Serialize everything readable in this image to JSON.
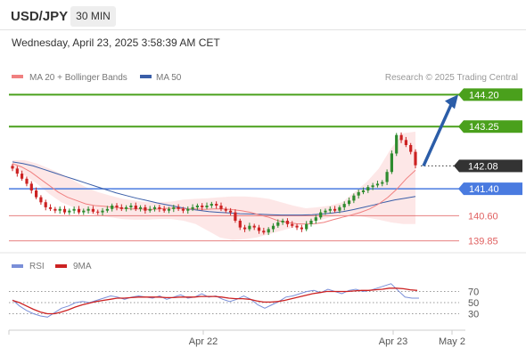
{
  "header": {
    "symbol": "USD/JPY",
    "timeframe": "30 MIN",
    "datetime": "Wednesday, April 23, 2025 3:58:39 AM CET"
  },
  "legend": {
    "ma20_label": "MA 20 + Bollinger Bands",
    "ma50_label": "MA 50",
    "credit": "Research © 2025 Trading Central"
  },
  "colors": {
    "ma20": "#f08080",
    "ma50": "#3a5ea8",
    "resistance": "#4aa01c",
    "support": "#4a7be0",
    "weak_support": "#e06060",
    "bull": "#2e8b2e",
    "bear": "#cc2222",
    "rsi": "#7a8fd8",
    "rsi_ma": "#cc2222",
    "forecast": "#2b5da8"
  },
  "chart_data": [
    {
      "type": "candlestick",
      "ylim": [
        139.55,
        144.5
      ],
      "levels": [
        {
          "value": 144.2,
          "label": "144.20",
          "kind": "resistance"
        },
        {
          "value": 143.25,
          "label": "143.25",
          "kind": "resistance"
        },
        {
          "value": 142.08,
          "label": "142.08",
          "kind": "last"
        },
        {
          "value": 141.4,
          "label": "141.40",
          "kind": "support"
        },
        {
          "value": 140.6,
          "label": "140.60",
          "kind": "weak_support"
        },
        {
          "value": 139.85,
          "label": "139.85",
          "kind": "weak_support"
        }
      ],
      "x_labels": [
        "Apr 22",
        "Apr 23",
        "May 2"
      ],
      "forecast": {
        "from": 142.08,
        "to": 144.2
      },
      "candles_close": [
        142.0,
        141.85,
        141.7,
        141.55,
        141.35,
        141.15,
        141.0,
        140.85,
        140.8,
        140.75,
        140.8,
        140.7,
        140.75,
        140.8,
        140.7,
        140.75,
        140.8,
        140.72,
        140.7,
        140.75,
        140.8,
        140.9,
        140.85,
        140.8,
        140.85,
        140.9,
        140.8,
        140.85,
        140.75,
        140.8,
        140.85,
        140.8,
        140.75,
        140.8,
        140.85,
        140.8,
        140.75,
        140.8,
        140.85,
        140.9,
        140.85,
        140.9,
        140.95,
        140.9,
        140.8,
        140.75,
        140.7,
        140.45,
        140.25,
        140.2,
        140.3,
        140.25,
        140.15,
        140.1,
        140.2,
        140.3,
        140.4,
        140.45,
        140.35,
        140.3,
        140.25,
        140.2,
        140.35,
        140.45,
        140.55,
        140.7,
        140.75,
        140.8,
        140.75,
        140.85,
        140.95,
        141.05,
        141.2,
        141.3,
        141.35,
        141.45,
        141.5,
        141.55,
        141.6,
        141.9,
        142.45,
        143.0,
        142.85,
        142.7,
        142.5,
        142.1
      ],
      "ma20": [
        142.15,
        142.05,
        141.9,
        141.7,
        141.5,
        141.3,
        141.15,
        141.05,
        140.95,
        140.9,
        140.88,
        140.85,
        140.82,
        140.8,
        140.8,
        140.78,
        140.8,
        140.82,
        140.82,
        140.8,
        140.8,
        140.79,
        140.8,
        140.8,
        140.78,
        140.75,
        140.7,
        140.62,
        140.55,
        140.45,
        140.4,
        140.36,
        140.35,
        140.36,
        140.4,
        140.48,
        140.55,
        140.62,
        140.7,
        140.8,
        140.95,
        141.15,
        141.4,
        141.7,
        141.95
      ],
      "ma50": [
        142.2,
        142.15,
        142.08,
        141.98,
        141.88,
        141.78,
        141.68,
        141.58,
        141.48,
        141.38,
        141.28,
        141.2,
        141.12,
        141.05,
        140.98,
        140.92,
        140.86,
        140.8,
        140.76,
        140.72,
        140.7,
        140.68,
        140.66,
        140.65,
        140.64,
        140.63,
        140.62,
        140.62,
        140.62,
        140.63,
        140.65,
        140.68,
        140.72,
        140.78,
        140.85,
        140.92,
        141.0,
        141.07,
        141.12,
        141.17
      ],
      "bollinger_upper": [
        142.25,
        142.25,
        142.15,
        142.0,
        141.85,
        141.65,
        141.45,
        141.3,
        141.2,
        141.1,
        141.05,
        141.0,
        141.0,
        141.02,
        141.08,
        141.1,
        141.12,
        141.15,
        141.17,
        141.17,
        141.15,
        141.1,
        141.0,
        140.9,
        140.82,
        140.85,
        140.9,
        141.0,
        141.3,
        141.6,
        142.0,
        142.6,
        143.05,
        143.1
      ],
      "bollinger_lower": [
        142.05,
        141.8,
        141.55,
        141.25,
        141.0,
        140.85,
        140.7,
        140.6,
        140.55,
        140.5,
        140.48,
        140.48,
        140.5,
        140.5,
        140.45,
        140.35,
        140.15,
        139.95,
        139.88,
        139.9,
        139.95,
        140.05,
        140.15,
        140.25,
        140.35,
        140.45,
        140.55,
        140.62,
        140.62,
        140.55,
        140.48,
        140.4,
        140.35,
        140.35
      ]
    },
    {
      "type": "line",
      "series": [
        {
          "name": "RSI",
          "values": [
            55,
            44,
            36,
            30,
            26,
            24,
            32,
            40,
            44,
            50,
            52,
            50,
            54,
            58,
            62,
            60,
            56,
            60,
            62,
            60,
            58,
            62,
            56,
            60,
            64,
            58,
            60,
            66,
            60,
            62,
            56,
            52,
            56,
            62,
            56,
            46,
            40,
            46,
            52,
            60,
            62,
            66,
            70,
            72,
            68,
            74,
            70,
            66,
            72,
            74,
            70,
            72,
            76,
            80,
            84,
            72,
            60,
            58,
            58
          ]
        },
        {
          "name": "9MA",
          "values": [
            54,
            50,
            44,
            38,
            33,
            30,
            30,
            33,
            37,
            42,
            46,
            49,
            52,
            54,
            56,
            58,
            58,
            59,
            60,
            60,
            60,
            60,
            59,
            59,
            60,
            60,
            60,
            61,
            61,
            61,
            60,
            58,
            57,
            57,
            56,
            53,
            51,
            51,
            52,
            54,
            57,
            60,
            63,
            66,
            68,
            70,
            70,
            70,
            70,
            71,
            72,
            72,
            73,
            74,
            76,
            76,
            75,
            73,
            72
          ]
        }
      ],
      "levels": [
        70,
        50,
        30
      ],
      "level_labels": [
        "70",
        "50",
        "30"
      ],
      "ylim": [
        10,
        90
      ]
    }
  ]
}
